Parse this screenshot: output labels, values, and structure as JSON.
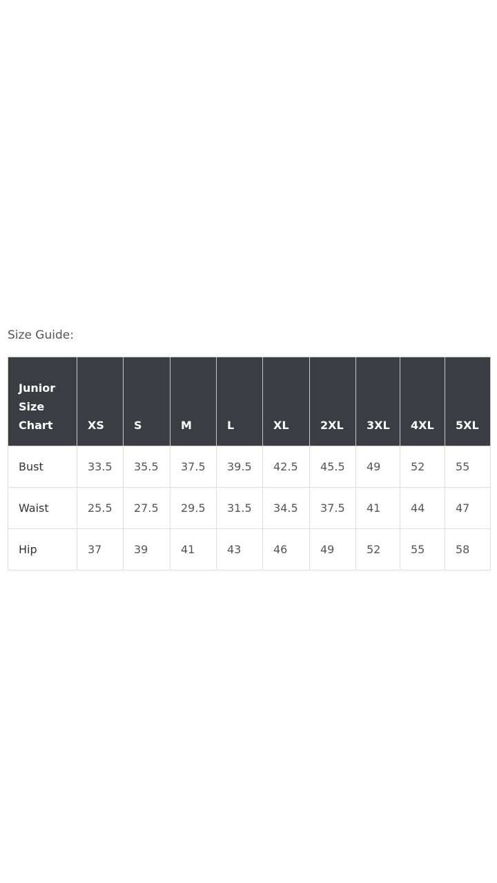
{
  "title": "Size Guide:",
  "table": {
    "corner": [
      "Junior",
      "Size",
      "Chart"
    ],
    "sizes": [
      "XS",
      "S",
      "M",
      "L",
      "XL",
      "2XL",
      "3XL",
      "4XL",
      "5XL"
    ],
    "rows": [
      {
        "label": "Bust",
        "values": [
          "33.5",
          "35.5",
          "37.5",
          "39.5",
          "42.5",
          "45.5",
          "49",
          "52",
          "55"
        ]
      },
      {
        "label": "Waist",
        "values": [
          "25.5",
          "27.5",
          "29.5",
          "31.5",
          "34.5",
          "37.5",
          "41",
          "44",
          "47"
        ]
      },
      {
        "label": "Hip",
        "values": [
          "37",
          "39",
          "41",
          "43",
          "46",
          "49",
          "52",
          "55",
          "58"
        ]
      }
    ]
  },
  "colors": {
    "header_bg": "#3a3d42",
    "border": "#dddddd"
  }
}
